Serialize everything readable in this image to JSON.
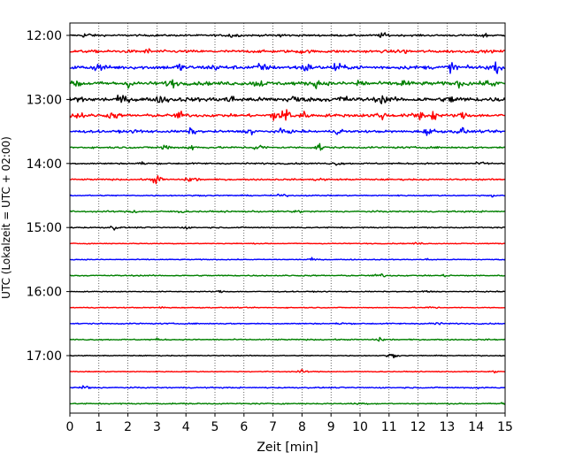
{
  "chart_data": {
    "type": "line",
    "title": "",
    "xlabel": "Zeit  [min]",
    "ylabel": "UTC (Lokalzeit = UTC + 02:00)",
    "xlim": [
      0,
      15
    ],
    "x_ticks": [
      0,
      1,
      2,
      3,
      4,
      5,
      6,
      7,
      8,
      9,
      10,
      11,
      12,
      13,
      14,
      15
    ],
    "y_ticks": [
      {
        "label": "12:00",
        "trace": 0
      },
      {
        "label": "13:00",
        "trace": 4
      },
      {
        "label": "14:00",
        "trace": 8
      },
      {
        "label": "15:00",
        "trace": 12
      },
      {
        "label": "16:00",
        "trace": 16
      },
      {
        "label": "17:00",
        "trace": 20
      }
    ],
    "grid": {
      "x": true,
      "y": false,
      "style": "dotted"
    },
    "color_cycle": [
      "#000000",
      "#ff0000",
      "#0000ff",
      "#008000"
    ],
    "series": [
      {
        "start": "12:00",
        "base_amp": 0.3,
        "events": [
          [
            0.6,
            0.9
          ],
          [
            5.6,
            0.8
          ],
          [
            7.3,
            0.7
          ],
          [
            10.8,
            0.7
          ],
          [
            14.3,
            0.6
          ]
        ]
      },
      {
        "start": "12:15",
        "base_amp": 0.45,
        "events": [
          [
            2.7,
            0.6
          ],
          [
            8.0,
            0.5
          ],
          [
            11.5,
            0.6
          ]
        ]
      },
      {
        "start": "12:30",
        "base_amp": 0.6,
        "events": [
          [
            1.0,
            1.1
          ],
          [
            3.8,
            1.0
          ],
          [
            5.0,
            0.8
          ],
          [
            6.6,
            1.2
          ],
          [
            8.1,
            1.3
          ],
          [
            9.2,
            1.2
          ],
          [
            13.2,
            1.4
          ],
          [
            14.7,
            1.2
          ]
        ]
      },
      {
        "start": "12:45",
        "base_amp": 0.6,
        "events": [
          [
            0.3,
            1.0
          ],
          [
            2.0,
            1.0
          ],
          [
            3.5,
            1.1
          ],
          [
            6.5,
            1.0
          ],
          [
            8.5,
            1.0
          ],
          [
            10.0,
            1.3
          ],
          [
            11.5,
            1.1
          ],
          [
            13.5,
            1.0
          ],
          [
            14.5,
            1.0
          ]
        ]
      },
      {
        "start": "13:00",
        "base_amp": 0.7,
        "events": [
          [
            0.3,
            1.0
          ],
          [
            1.8,
            0.9
          ],
          [
            3.2,
            1.0
          ],
          [
            5.5,
            1.0
          ],
          [
            7.7,
            1.2
          ],
          [
            9.4,
            1.0
          ],
          [
            10.8,
            1.0
          ],
          [
            13.2,
            1.1
          ]
        ]
      },
      {
        "start": "13:15",
        "base_amp": 0.5,
        "events": [
          [
            0.3,
            1.2
          ],
          [
            1.5,
            0.9
          ],
          [
            3.8,
            1.0
          ],
          [
            7.1,
            2.0
          ],
          [
            7.5,
            2.3
          ],
          [
            8.0,
            1.2
          ],
          [
            10.7,
            1.4
          ],
          [
            12.0,
            1.8
          ],
          [
            12.5,
            1.5
          ],
          [
            13.6,
            1.0
          ]
        ]
      },
      {
        "start": "13:30",
        "base_amp": 0.4,
        "events": [
          [
            2.4,
            0.8
          ],
          [
            4.2,
            0.8
          ],
          [
            6.3,
            0.9
          ],
          [
            7.4,
            0.9
          ],
          [
            9.3,
            0.8
          ],
          [
            12.4,
            1.3
          ],
          [
            13.5,
            1.1
          ]
        ]
      },
      {
        "start": "13:45",
        "base_amp": 0.3,
        "events": [
          [
            3.3,
            1.1
          ],
          [
            4.2,
            0.9
          ],
          [
            6.5,
            1.1
          ],
          [
            8.6,
            1.2
          ]
        ]
      },
      {
        "start": "14:00",
        "base_amp": 0.25,
        "events": [
          [
            2.5,
            0.4
          ],
          [
            9.2,
            0.4
          ],
          [
            14.2,
            0.4
          ]
        ]
      },
      {
        "start": "14:15",
        "base_amp": 0.25,
        "events": [
          [
            3.0,
            1.4
          ],
          [
            4.2,
            1.1
          ],
          [
            8.6,
            0.4
          ]
        ]
      },
      {
        "start": "14:30",
        "base_amp": 0.2,
        "events": [
          [
            7.3,
            0.4
          ],
          [
            14.6,
            0.4
          ]
        ]
      },
      {
        "start": "14:45",
        "base_amp": 0.25,
        "events": [
          [
            2.2,
            0.4
          ],
          [
            3.8,
            0.4
          ],
          [
            7.8,
            0.4
          ]
        ]
      },
      {
        "start": "15:00",
        "base_amp": 0.2,
        "events": [
          [
            1.5,
            0.6
          ],
          [
            4.0,
            0.3
          ]
        ]
      },
      {
        "start": "15:15",
        "base_amp": 0.15,
        "events": [
          [
            12.0,
            0.3
          ]
        ]
      },
      {
        "start": "15:30",
        "base_amp": 0.15,
        "events": [
          [
            8.3,
            0.4
          ],
          [
            12.4,
            0.3
          ]
        ]
      },
      {
        "start": "15:45",
        "base_amp": 0.2,
        "events": [
          [
            10.7,
            0.6
          ],
          [
            13.0,
            0.3
          ]
        ]
      },
      {
        "start": "16:00",
        "base_amp": 0.15,
        "events": [
          [
            5.2,
            0.3
          ],
          [
            12.3,
            0.3
          ]
        ]
      },
      {
        "start": "16:15",
        "base_amp": 0.15,
        "events": [
          [
            3.2,
            0.3
          ],
          [
            12.5,
            0.4
          ]
        ]
      },
      {
        "start": "16:30",
        "base_amp": 0.2,
        "events": [
          [
            9.4,
            0.4
          ],
          [
            12.6,
            0.6
          ]
        ]
      },
      {
        "start": "16:45",
        "base_amp": 0.2,
        "events": [
          [
            3.0,
            0.3
          ],
          [
            10.7,
            0.5
          ]
        ]
      },
      {
        "start": "17:00",
        "base_amp": 0.15,
        "events": [
          [
            11.1,
            0.6
          ]
        ]
      },
      {
        "start": "17:15",
        "base_amp": 0.15,
        "events": [
          [
            8.0,
            0.5
          ],
          [
            14.6,
            0.3
          ]
        ]
      },
      {
        "start": "17:30",
        "base_amp": 0.2,
        "events": [
          [
            0.5,
            0.8
          ],
          [
            14.0,
            0.4
          ]
        ]
      },
      {
        "start": "17:45",
        "base_amp": 0.2,
        "events": [
          [
            10.0,
            0.4
          ],
          [
            14.9,
            0.3
          ]
        ]
      }
    ]
  }
}
